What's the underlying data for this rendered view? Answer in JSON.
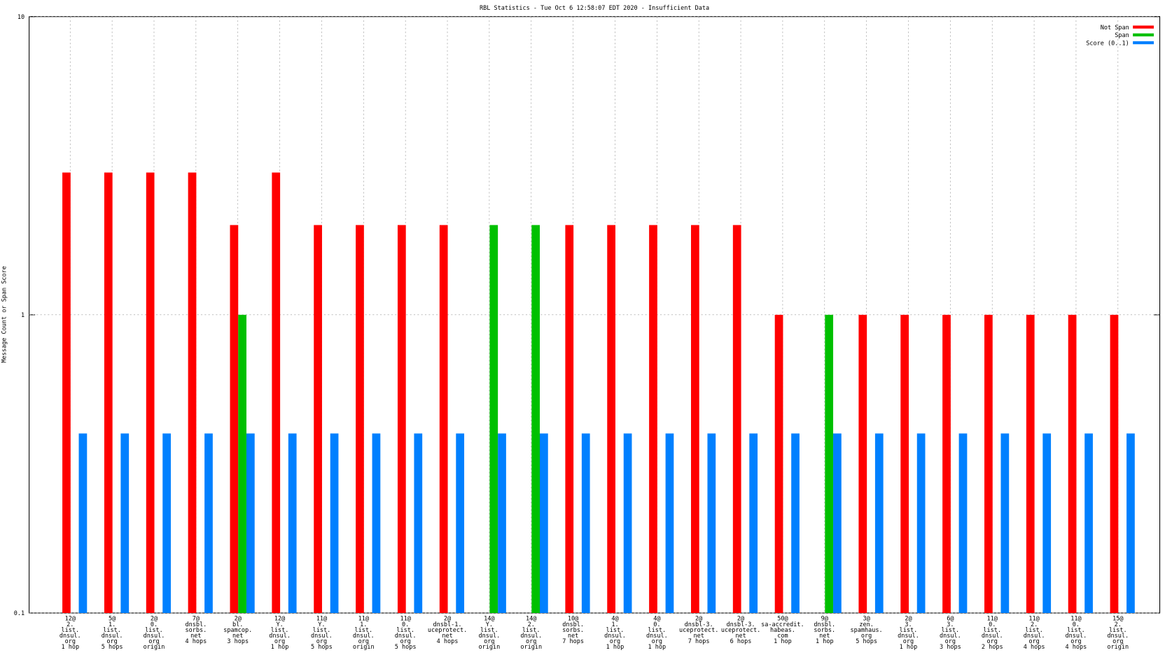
{
  "chart_data": {
    "type": "bar",
    "title": "RBL Statistics - Tue Oct  6 12:58:07 EDT 2020 - Insufficient Data",
    "y_label": "Message Count or Span Score",
    "log_y": true,
    "ylim": [
      0.1,
      10
    ],
    "yticks": [
      0.1,
      1,
      10
    ],
    "grid": true,
    "legend": "upper right",
    "categories": [
      [
        "12@",
        "2.",
        "list.",
        "dnsul.",
        "org",
        "1 hop"
      ],
      [
        "5@",
        "1.",
        "list.",
        "dnsul.",
        "org",
        "5 hops"
      ],
      [
        "2@",
        "0.",
        "list.",
        "dnsul.",
        "org",
        "origin"
      ],
      [
        "7@",
        "dnsbl.",
        "sorbs.",
        "net",
        "4 hops"
      ],
      [
        "2@",
        "bl.",
        "spamcop.",
        "net",
        "3 hops"
      ],
      [
        "12@",
        "Y.",
        "list.",
        "dnsul.",
        "org",
        "1 hop"
      ],
      [
        "11@",
        "Y.",
        "list.",
        "dnsul.",
        "org",
        "5 hops"
      ],
      [
        "11@",
        "1.",
        "list.",
        "dnsul.",
        "org",
        "origin"
      ],
      [
        "11@",
        "0.",
        "list.",
        "dnsul.",
        "org",
        "5 hops"
      ],
      [
        "2@",
        "dnsbl-1.",
        "uceprotect.",
        "net",
        "4 hops"
      ],
      [
        "14@",
        "Y.",
        "list.",
        "dnsul.",
        "org",
        "origin"
      ],
      [
        "14@",
        "2.",
        "list.",
        "dnsul.",
        "org",
        "origin"
      ],
      [
        "10@",
        "dnsbl.",
        "sorbs.",
        "net",
        "7 hops"
      ],
      [
        "4@",
        "1.",
        "list.",
        "dnsul.",
        "org",
        "1 hop"
      ],
      [
        "4@",
        "0.",
        "list.",
        "dnsul.",
        "org",
        "1 hop"
      ],
      [
        "2@",
        "dnsbl-3.",
        "uceprotect.",
        "net",
        "7 hops"
      ],
      [
        "2@",
        "dnsbl-3.",
        "uceprotect.",
        "net",
        "6 hops"
      ],
      [
        "50@",
        "sa-accredit.",
        "habeas.",
        "com",
        "1 hop"
      ],
      [
        "9@",
        "dnsbl.",
        "sorbs.",
        "net",
        "1 hop"
      ],
      [
        "3@",
        "zen.",
        "spamhaus.",
        "org",
        "5 hops"
      ],
      [
        "2@",
        "3.",
        "list.",
        "dnsul.",
        "org",
        "1 hop"
      ],
      [
        "6@",
        "3.",
        "list.",
        "dnsul.",
        "org",
        "3 hops"
      ],
      [
        "11@",
        "0.",
        "list.",
        "dnsul.",
        "org",
        "2 hops"
      ],
      [
        "11@",
        "2.",
        "list.",
        "dnsul.",
        "org",
        "4 hops"
      ],
      [
        "11@",
        "0.",
        "list.",
        "dnsul.",
        "org",
        "4 hops"
      ],
      [
        "15@",
        "2.",
        "list.",
        "dnsul.",
        "org",
        "origin"
      ]
    ],
    "series": [
      {
        "name": "Not Span",
        "color": "#ff0000",
        "values": [
          3,
          3,
          3,
          3,
          2,
          3,
          2,
          2,
          2,
          2,
          null,
          null,
          2,
          2,
          2,
          2,
          2,
          1,
          null,
          1,
          1,
          1,
          1,
          1,
          1,
          1
        ]
      },
      {
        "name": "Span",
        "color": "#00c000",
        "values": [
          null,
          null,
          null,
          null,
          1,
          null,
          null,
          null,
          null,
          null,
          2,
          2,
          null,
          null,
          null,
          null,
          null,
          null,
          1,
          null,
          null,
          null,
          null,
          null,
          null,
          null
        ]
      },
      {
        "name": "Score (0..1)",
        "color": "#0080ff",
        "values": [
          0.4,
          0.4,
          0.4,
          0.4,
          0.4,
          0.4,
          0.4,
          0.4,
          0.4,
          0.4,
          0.4,
          0.4,
          0.4,
          0.4,
          0.4,
          0.4,
          0.4,
          0.4,
          0.4,
          0.4,
          0.4,
          0.4,
          0.4,
          0.4,
          0.4,
          0.4
        ]
      }
    ]
  }
}
